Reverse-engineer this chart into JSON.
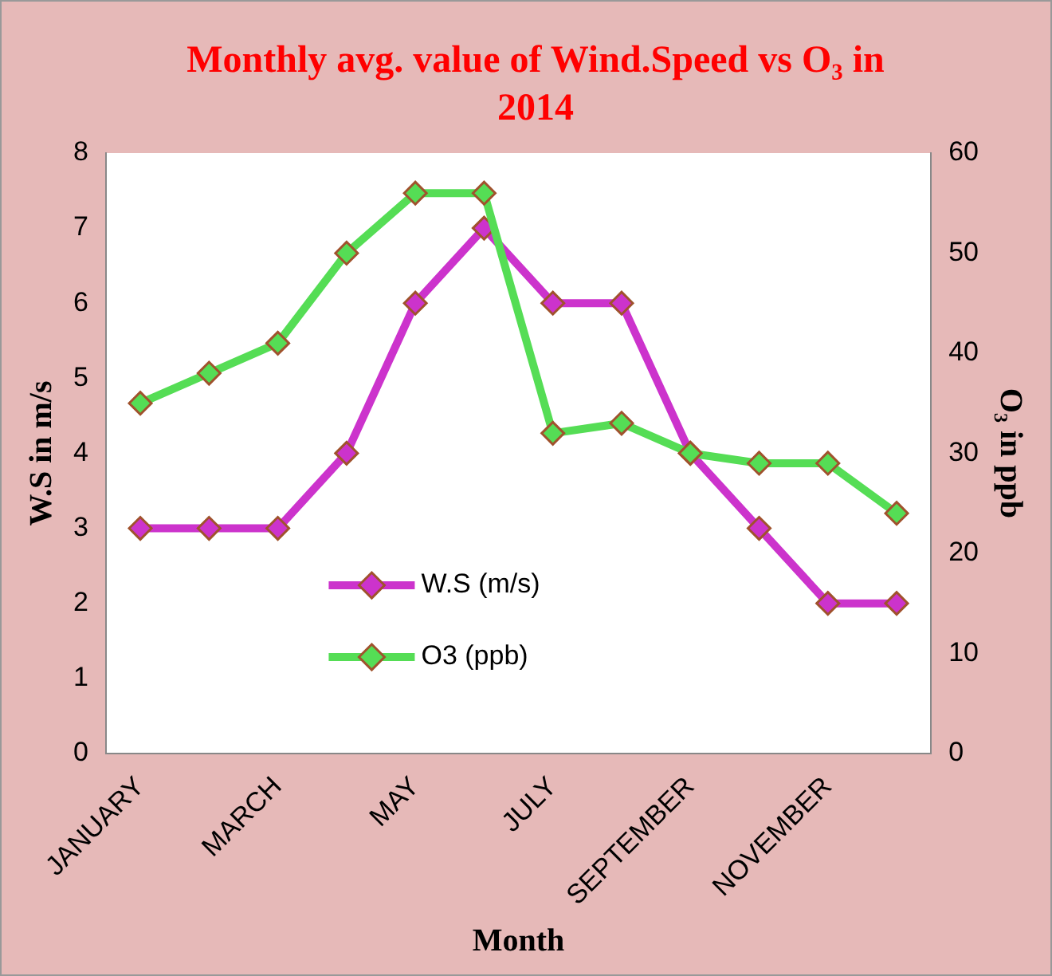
{
  "chart_data": {
    "type": "line",
    "title": "Monthly avg. value of Wind.Speed vs O₃ in 2014",
    "xlabel": "Month",
    "ylabel": "W.S in m/s",
    "y2label": "O₃ in ppb",
    "categories": [
      "JANUARY",
      null,
      "MARCH",
      null,
      "MAY",
      null,
      "JULY",
      null,
      "SEPTEMBER",
      null,
      "NOVEMBER",
      null
    ],
    "series": [
      {
        "name": "W.S (m/s)",
        "color": "#cc33cc",
        "values": [
          3,
          3,
          3,
          4,
          6,
          7,
          6,
          6,
          4,
          3,
          2,
          2
        ]
      },
      {
        "name": "O3 (ppb)",
        "color": "#55dd55",
        "axis": "y2",
        "values": [
          35,
          38,
          41,
          50,
          56,
          56,
          32,
          33,
          30,
          29,
          29,
          24
        ]
      }
    ],
    "ylim": [
      0,
      8
    ],
    "yticks": [
      0,
      1,
      2,
      3,
      4,
      5,
      6,
      7,
      8
    ],
    "y2lim": [
      0,
      60
    ],
    "y2ticks": [
      0,
      10,
      20,
      30,
      40,
      50,
      60
    ],
    "grid": false,
    "legend": "bottom",
    "marker": "diamond",
    "line_style": "solid"
  }
}
